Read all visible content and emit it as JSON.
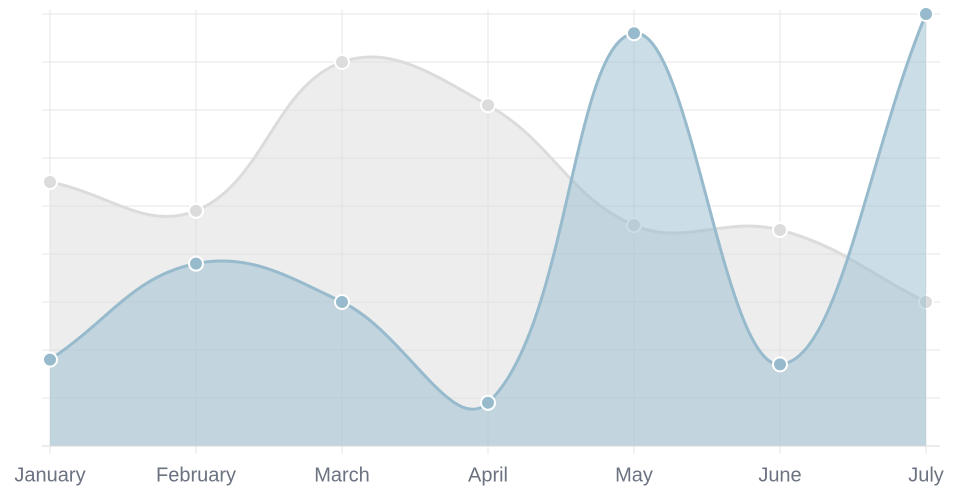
{
  "chart_data": {
    "type": "line",
    "categories": [
      "January",
      "February",
      "March",
      "April",
      "May",
      "June",
      "July"
    ],
    "series": [
      {
        "color": "#dcdcdc",
        "values": [
          55,
          49,
          80,
          71,
          46,
          45,
          30
        ]
      },
      {
        "color": "#97bbcd",
        "values": [
          18,
          38,
          30,
          9,
          86,
          17,
          90
        ]
      }
    ],
    "ylim": [
      0,
      90
    ],
    "yticks": [
      0,
      10,
      20,
      30,
      40,
      50,
      60,
      70,
      80,
      90
    ],
    "grid": true,
    "area": true
  }
}
